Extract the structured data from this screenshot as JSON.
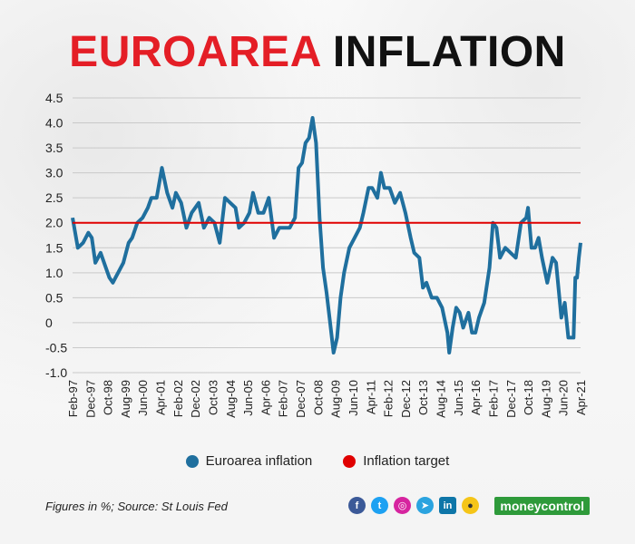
{
  "title": {
    "part1": "EUROAREA",
    "part2": "INFLATION"
  },
  "footnote": "Figures in %; Source: St Louis Fed",
  "brand": "moneycontrol",
  "social_icons": [
    "facebook-icon",
    "twitter-icon",
    "instagram-icon",
    "telegram-icon",
    "linkedin-icon",
    "koo-icon"
  ],
  "colors": {
    "series": "#1f6f9e",
    "target": "#e00000",
    "title_accent": "#e41e26"
  },
  "chart_data": {
    "type": "line",
    "ylim": [
      -1.0,
      4.5
    ],
    "y_ticks": [
      "4.5",
      "4.0",
      "3.5",
      "3.0",
      "2.5",
      "2.0",
      "1.5",
      "1.0",
      "0.5",
      "0",
      "-0.5",
      "-1.0"
    ],
    "x_range": [
      "1997-02",
      "2021-04"
    ],
    "x_ticks": [
      "Feb-97",
      "Dec-97",
      "Oct-98",
      "Aug-99",
      "Jun-00",
      "Apr-01",
      "Feb-02",
      "Dec-02",
      "Oct-03",
      "Aug-04",
      "Jun-05",
      "Apr-06",
      "Feb-07",
      "Dec-07",
      "Oct-08",
      "Aug-09",
      "Jun-10",
      "Apr-11",
      "Feb-12",
      "Dec-12",
      "Oct-13",
      "Aug-14",
      "Jun-15",
      "Apr-16",
      "Feb-17",
      "Dec-17",
      "Oct-18",
      "Aug-19",
      "Jun-20",
      "Apr-21"
    ],
    "grid": true,
    "legend_position": "bottom-center",
    "series": [
      {
        "name": "Euroarea inflation",
        "points": [
          [
            "1997-02",
            2.1
          ],
          [
            "1997-05",
            1.5
          ],
          [
            "1997-08",
            1.6
          ],
          [
            "1997-11",
            1.8
          ],
          [
            "1998-01",
            1.7
          ],
          [
            "1998-03",
            1.2
          ],
          [
            "1998-06",
            1.4
          ],
          [
            "1998-09",
            1.1
          ],
          [
            "1998-11",
            0.9
          ],
          [
            "1999-01",
            0.8
          ],
          [
            "1999-04",
            1.0
          ],
          [
            "1999-07",
            1.2
          ],
          [
            "1999-10",
            1.6
          ],
          [
            "1999-12",
            1.7
          ],
          [
            "2000-03",
            2.0
          ],
          [
            "2000-06",
            2.1
          ],
          [
            "2000-09",
            2.3
          ],
          [
            "2000-11",
            2.5
          ],
          [
            "2001-02",
            2.5
          ],
          [
            "2001-05",
            3.1
          ],
          [
            "2001-08",
            2.6
          ],
          [
            "2001-11",
            2.3
          ],
          [
            "2002-01",
            2.6
          ],
          [
            "2002-04",
            2.4
          ],
          [
            "2002-07",
            1.9
          ],
          [
            "2002-10",
            2.2
          ],
          [
            "2002-12",
            2.3
          ],
          [
            "2003-02",
            2.4
          ],
          [
            "2003-05",
            1.9
          ],
          [
            "2003-08",
            2.1
          ],
          [
            "2003-11",
            2.0
          ],
          [
            "2004-02",
            1.6
          ],
          [
            "2004-05",
            2.5
          ],
          [
            "2004-08",
            2.4
          ],
          [
            "2004-11",
            2.3
          ],
          [
            "2005-01",
            1.9
          ],
          [
            "2005-04",
            2.0
          ],
          [
            "2005-07",
            2.2
          ],
          [
            "2005-09",
            2.6
          ],
          [
            "2005-12",
            2.2
          ],
          [
            "2006-03",
            2.2
          ],
          [
            "2006-06",
            2.5
          ],
          [
            "2006-09",
            1.7
          ],
          [
            "2006-12",
            1.9
          ],
          [
            "2007-03",
            1.9
          ],
          [
            "2007-06",
            1.9
          ],
          [
            "2007-09",
            2.1
          ],
          [
            "2007-11",
            3.1
          ],
          [
            "2008-01",
            3.2
          ],
          [
            "2008-03",
            3.6
          ],
          [
            "2008-05",
            3.7
          ],
          [
            "2008-07",
            4.1
          ],
          [
            "2008-09",
            3.6
          ],
          [
            "2008-11",
            2.1
          ],
          [
            "2009-01",
            1.1
          ],
          [
            "2009-03",
            0.6
          ],
          [
            "2009-05",
            0.0
          ],
          [
            "2009-07",
            -0.6
          ],
          [
            "2009-09",
            -0.3
          ],
          [
            "2009-11",
            0.5
          ],
          [
            "2010-01",
            1.0
          ],
          [
            "2010-04",
            1.5
          ],
          [
            "2010-07",
            1.7
          ],
          [
            "2010-10",
            1.9
          ],
          [
            "2010-12",
            2.2
          ],
          [
            "2011-03",
            2.7
          ],
          [
            "2011-05",
            2.7
          ],
          [
            "2011-08",
            2.5
          ],
          [
            "2011-10",
            3.0
          ],
          [
            "2011-12",
            2.7
          ],
          [
            "2012-03",
            2.7
          ],
          [
            "2012-06",
            2.4
          ],
          [
            "2012-09",
            2.6
          ],
          [
            "2012-12",
            2.2
          ],
          [
            "2013-03",
            1.7
          ],
          [
            "2013-05",
            1.4
          ],
          [
            "2013-08",
            1.3
          ],
          [
            "2013-10",
            0.7
          ],
          [
            "2013-12",
            0.8
          ],
          [
            "2014-03",
            0.5
          ],
          [
            "2014-06",
            0.5
          ],
          [
            "2014-09",
            0.3
          ],
          [
            "2014-12",
            -0.2
          ],
          [
            "2015-01",
            -0.6
          ],
          [
            "2015-03",
            -0.1
          ],
          [
            "2015-05",
            0.3
          ],
          [
            "2015-07",
            0.2
          ],
          [
            "2015-09",
            -0.1
          ],
          [
            "2015-12",
            0.2
          ],
          [
            "2016-02",
            -0.2
          ],
          [
            "2016-04",
            -0.2
          ],
          [
            "2016-06",
            0.1
          ],
          [
            "2016-09",
            0.4
          ],
          [
            "2016-12",
            1.1
          ],
          [
            "2017-02",
            2.0
          ],
          [
            "2017-04",
            1.9
          ],
          [
            "2017-06",
            1.3
          ],
          [
            "2017-09",
            1.5
          ],
          [
            "2017-12",
            1.4
          ],
          [
            "2018-03",
            1.3
          ],
          [
            "2018-06",
            2.0
          ],
          [
            "2018-09",
            2.1
          ],
          [
            "2018-10",
            2.3
          ],
          [
            "2018-12",
            1.5
          ],
          [
            "2019-02",
            1.5
          ],
          [
            "2019-04",
            1.7
          ],
          [
            "2019-06",
            1.3
          ],
          [
            "2019-09",
            0.8
          ],
          [
            "2019-12",
            1.3
          ],
          [
            "2020-02",
            1.2
          ],
          [
            "2020-05",
            0.1
          ],
          [
            "2020-07",
            0.4
          ],
          [
            "2020-09",
            -0.3
          ],
          [
            "2020-12",
            -0.3
          ],
          [
            "2021-01",
            0.9
          ],
          [
            "2021-02",
            0.9
          ],
          [
            "2021-03",
            1.3
          ],
          [
            "2021-04",
            1.6
          ]
        ]
      },
      {
        "name": "Inflation target",
        "value": 2.0
      }
    ]
  }
}
